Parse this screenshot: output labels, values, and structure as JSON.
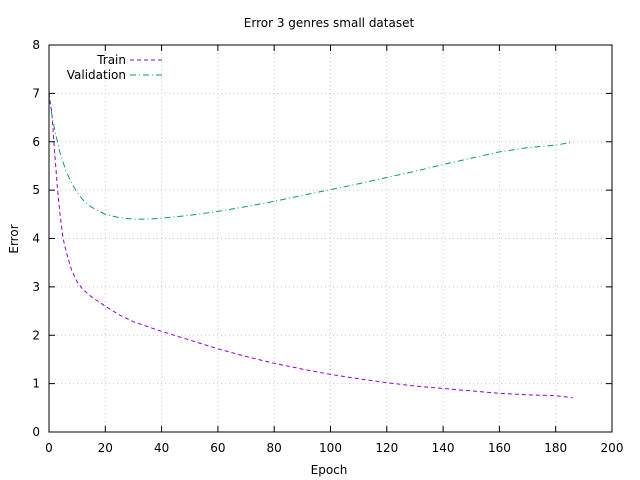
{
  "chart_data": {
    "type": "line",
    "title": "Error 3 genres small dataset",
    "xlabel": "Epoch",
    "ylabel": "Error",
    "xlim": [
      0,
      200
    ],
    "ylim": [
      0,
      8
    ],
    "xticks": [
      0,
      20,
      40,
      60,
      80,
      100,
      120,
      140,
      160,
      180,
      200
    ],
    "yticks": [
      0,
      1,
      2,
      3,
      4,
      5,
      6,
      7,
      8
    ],
    "grid": true,
    "legend_position": "top-left",
    "series": [
      {
        "name": "Train",
        "color": "#9400d3",
        "dash": "dashed",
        "x": [
          0,
          1,
          2,
          3,
          4,
          5,
          6,
          8,
          10,
          12,
          15,
          20,
          25,
          30,
          40,
          50,
          60,
          70,
          80,
          90,
          100,
          110,
          120,
          130,
          140,
          150,
          160,
          170,
          180,
          186
        ],
        "y": [
          7.0,
          6.6,
          5.8,
          5.05,
          4.45,
          4.0,
          3.75,
          3.35,
          3.1,
          2.95,
          2.8,
          2.6,
          2.42,
          2.28,
          2.08,
          1.9,
          1.72,
          1.56,
          1.42,
          1.3,
          1.19,
          1.1,
          1.02,
          0.95,
          0.9,
          0.85,
          0.8,
          0.77,
          0.75,
          0.71
        ]
      },
      {
        "name": "Validation",
        "color": "#009e73",
        "dash": "dash-dot",
        "x": [
          0,
          2,
          4,
          6,
          8,
          10,
          12,
          15,
          20,
          25,
          30,
          35,
          40,
          50,
          60,
          70,
          80,
          90,
          100,
          110,
          120,
          130,
          140,
          150,
          160,
          170,
          180,
          186
        ],
        "y": [
          6.9,
          6.25,
          5.75,
          5.4,
          5.15,
          4.95,
          4.8,
          4.65,
          4.5,
          4.43,
          4.4,
          4.4,
          4.42,
          4.48,
          4.56,
          4.66,
          4.77,
          4.89,
          5.01,
          5.13,
          5.26,
          5.39,
          5.53,
          5.66,
          5.79,
          5.88,
          5.93,
          5.99
        ]
      }
    ]
  }
}
